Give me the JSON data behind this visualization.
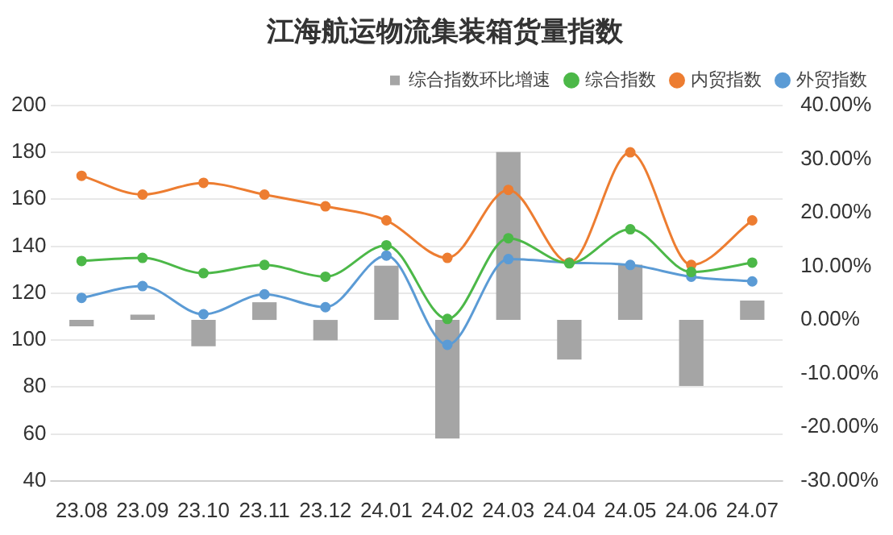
{
  "chart_data": {
    "type": "bar",
    "title": "江海航运物流集装箱货量指数",
    "categories": [
      "23.08",
      "23.09",
      "23.10",
      "23.11",
      "23.12",
      "24.01",
      "24.02",
      "24.03",
      "24.04",
      "24.05",
      "24.06",
      "24.07"
    ],
    "series": [
      {
        "name": "综合指数环比增速",
        "axis": "y2",
        "color": "#a5a5a5",
        "values": [
          -1.2,
          1.0,
          -4.9,
          3.3,
          -3.8,
          10.1,
          -22.1,
          31.3,
          -7.4,
          10.3,
          -12.3,
          3.6
        ]
      },
      {
        "name": "综合指数",
        "type": "line",
        "color": "#4cb848",
        "values": [
          133.7,
          135,
          128.5,
          132,
          127,
          140.4,
          109,
          143.4,
          132.7,
          147.2,
          129,
          133
        ]
      },
      {
        "name": "内贸指数",
        "type": "line",
        "color": "#ed7d31",
        "values": [
          170,
          162,
          167,
          162,
          157,
          151,
          135,
          164,
          133,
          180,
          132,
          151
        ]
      },
      {
        "name": "外贸指数",
        "type": "line",
        "color": "#5b9bd5",
        "values": [
          118,
          123,
          111,
          119.5,
          114,
          136,
          98,
          134.5,
          133,
          132,
          127,
          125
        ]
      }
    ],
    "ylim": [
      40,
      200
    ],
    "yticks": [
      40,
      60,
      80,
      100,
      120,
      140,
      160,
      180,
      200
    ],
    "y2lim": [
      -30,
      40
    ],
    "y2ticks": [
      {
        "value": -30,
        "label": "-30.00%"
      },
      {
        "value": -20,
        "label": "-20.00%"
      },
      {
        "value": -10,
        "label": "-10.00%"
      },
      {
        "value": 0,
        "label": "0.00%"
      },
      {
        "value": 10,
        "label": "10.00%"
      },
      {
        "value": 20,
        "label": "20.00%"
      },
      {
        "value": 30,
        "label": "30.00%"
      },
      {
        "value": 40,
        "label": "40.00%"
      }
    ],
    "grid": "y",
    "legend": "top",
    "marker": "circle",
    "line_style": "solid"
  }
}
